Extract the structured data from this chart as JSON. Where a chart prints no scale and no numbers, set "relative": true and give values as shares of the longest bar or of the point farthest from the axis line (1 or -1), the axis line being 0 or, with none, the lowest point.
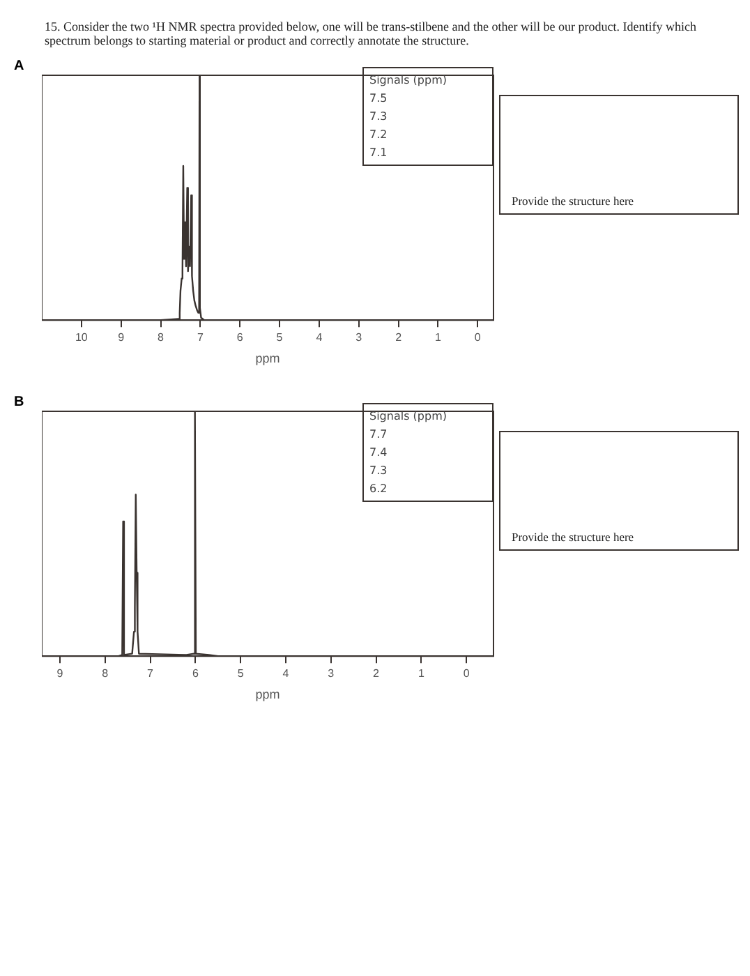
{
  "chart_data": [
    {
      "type": "line",
      "title": "15. Consider the two ¹H NMR spectra provided below, one will be trans-stilbene and the other will be our product. Identify which spectrum belongs to starting material or product and correctly annotate the structure.",
      "subtitle": "A",
      "xlabel": "ppm",
      "relative": true,
      "legend": false,
      "grid": false,
      "marker": "none",
      "line_style": "solid",
      "xlim": [
        11,
        -0.4
      ],
      "xticks": [
        10,
        9,
        8,
        7,
        6,
        5,
        4,
        3,
        2,
        1,
        0
      ],
      "annotations": [
        "Signals (ppm)",
        "7.5",
        "7.3",
        "7.2",
        "7.1",
        "Provide the structure here"
      ],
      "series": [
        {
          "color": "#3a3330",
          "x": [
            11,
            8,
            7.55,
            7.52,
            7.5,
            7.47,
            7.45,
            7.43,
            7.41,
            7.38,
            7.36,
            7.33,
            7.31,
            7.28,
            7.26,
            7.23,
            7.21,
            7.18,
            7.15,
            7.12,
            7.08,
            7.05,
            7.03,
            7.02,
            7.01,
            6.98,
            6.9,
            -0.4
          ],
          "values": [
            0,
            0,
            0.005,
            0.03,
            0.12,
            0.17,
            0.2,
            0.63,
            0.25,
            0.4,
            0.22,
            0.54,
            0.2,
            0.3,
            0.22,
            0.51,
            0.18,
            0.12,
            0.08,
            0.06,
            0.04,
            0.03,
            0.05,
            1,
            0.05,
            0.01,
            0,
            0
          ]
        }
      ]
    },
    {
      "type": "line",
      "subtitle": "B",
      "xlabel": "ppm",
      "relative": true,
      "legend": false,
      "grid": false,
      "marker": "none",
      "line_style": "solid",
      "xlim": [
        9.4,
        -0.6
      ],
      "xticks": [
        9,
        8,
        7,
        6,
        5,
        4,
        3,
        2,
        1,
        0
      ],
      "annotations": [
        "Signals (ppm)",
        "7.7",
        "7.4",
        "7.3",
        "6.2",
        "Provide the structure here"
      ],
      "series": [
        {
          "color": "#3a3330",
          "x": [
            9.4,
            7.7,
            7.62,
            7.6,
            7.58,
            7.4,
            7.36,
            7.34,
            7.32,
            7.3,
            7.28,
            7.25,
            6.2,
            6.03,
            6.01,
            5.99,
            5.7,
            5.5,
            -0.6
          ],
          "values": [
            0,
            0,
            0.005,
            0.55,
            0.005,
            0.01,
            0.1,
            0.2,
            0.66,
            0.34,
            0.1,
            0.01,
            0.005,
            0.01,
            1,
            0.01,
            0.005,
            0,
            0
          ]
        }
      ]
    }
  ]
}
